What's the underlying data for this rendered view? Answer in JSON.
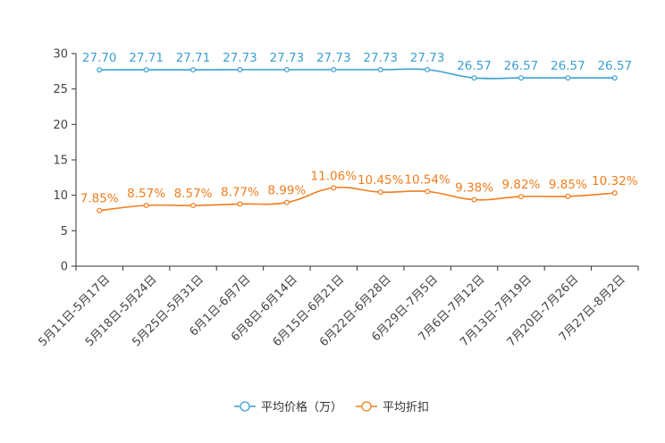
{
  "chart_data": {
    "type": "line",
    "title": "",
    "xlabel": "",
    "ylabel": "",
    "ylim": [
      0,
      30
    ],
    "yticks": [
      0,
      5,
      10,
      15,
      20,
      25,
      30
    ],
    "grid": false,
    "legend_position": "bottom-center",
    "categories": [
      "5月11日-5月17日",
      "5月18日-5月24日",
      "5月25日-5月31日",
      "6月1日-6月7日",
      "6月8日-6月14日",
      "6月15日-6月21日",
      "6月22日-6月28日",
      "6月29日-7月5日",
      "7月6日-7月12日",
      "7月13日-7月19日",
      "7月20日-7月26日",
      "7月27日-8月2日"
    ],
    "series": [
      {
        "name": "平均价格（万）",
        "color": "#3c9fd1",
        "values": [
          27.7,
          27.71,
          27.71,
          27.73,
          27.73,
          27.73,
          27.73,
          27.73,
          26.57,
          26.57,
          26.57,
          26.57
        ],
        "labels": [
          "27.70",
          "27.71",
          "27.71",
          "27.73",
          "27.73",
          "27.73",
          "27.73",
          "27.73",
          "26.57",
          "26.57",
          "26.57",
          "26.57"
        ]
      },
      {
        "name": "平均折扣",
        "color": "#f07d1d",
        "values": [
          7.85,
          8.57,
          8.57,
          8.77,
          8.99,
          11.06,
          10.45,
          10.54,
          9.38,
          9.82,
          9.85,
          10.32
        ],
        "labels": [
          "7.85%",
          "8.57%",
          "8.57%",
          "8.77%",
          "8.99%",
          "11.06%",
          "10.45%",
          "10.54%",
          "9.38%",
          "9.82%",
          "9.85%",
          "10.32%"
        ]
      }
    ]
  }
}
